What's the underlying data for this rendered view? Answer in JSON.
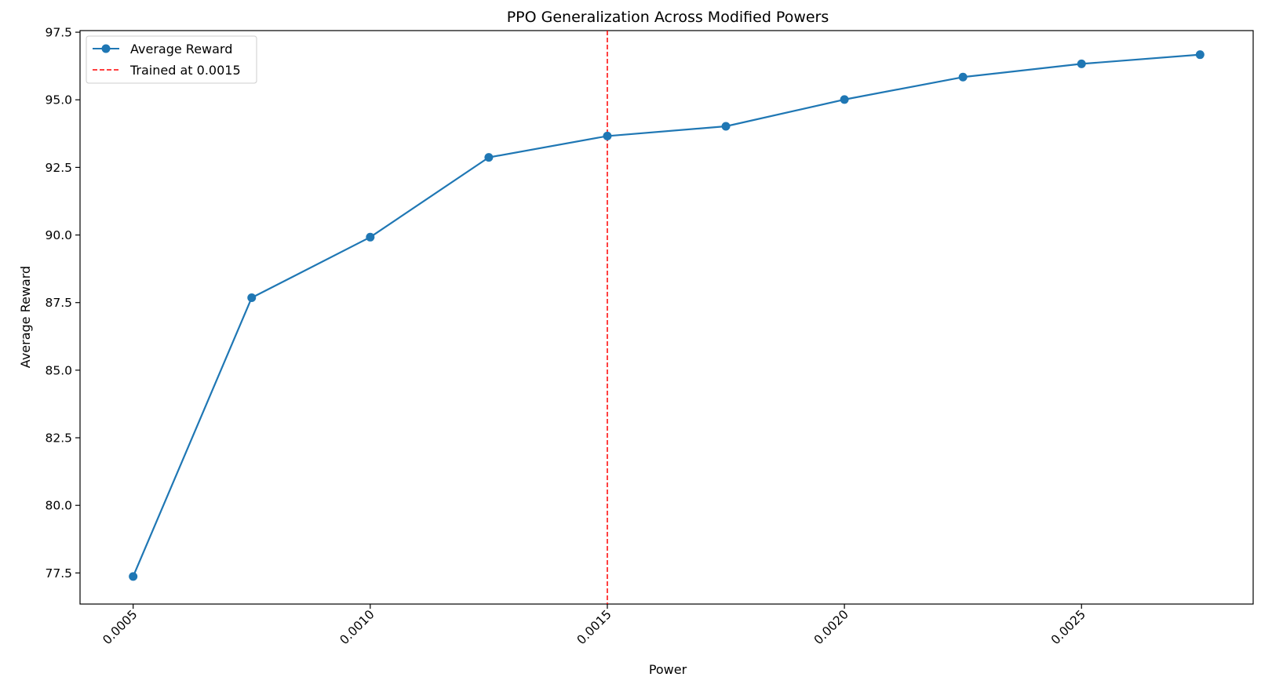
{
  "chart_data": {
    "type": "line",
    "title": "PPO Generalization Across Modified Powers",
    "xlabel": "Power",
    "ylabel": "Average Reward",
    "xlim": [
      0.000388,
      0.002862
    ],
    "ylim": [
      76.35,
      97.56
    ],
    "x_ticks": [
      {
        "value": 0.0005,
        "label": "0.0005"
      },
      {
        "value": 0.001,
        "label": "0.0010"
      },
      {
        "value": 0.0015,
        "label": "0.0015"
      },
      {
        "value": 0.002,
        "label": "0.0020"
      },
      {
        "value": 0.0025,
        "label": "0.0025"
      }
    ],
    "y_ticks": [
      {
        "value": 77.5,
        "label": "77.5"
      },
      {
        "value": 80.0,
        "label": "80.0"
      },
      {
        "value": 82.5,
        "label": "82.5"
      },
      {
        "value": 85.0,
        "label": "85.0"
      },
      {
        "value": 87.5,
        "label": "87.5"
      },
      {
        "value": 90.0,
        "label": "90.0"
      },
      {
        "value": 92.5,
        "label": "92.5"
      },
      {
        "value": 95.0,
        "label": "95.0"
      },
      {
        "value": 97.5,
        "label": "97.5"
      }
    ],
    "series": [
      {
        "name": "Average Reward",
        "color": "#1f77b4",
        "marker": "circle",
        "x": [
          0.0005,
          0.00075,
          0.001,
          0.00125,
          0.0015,
          0.00175,
          0.002,
          0.00225,
          0.0025,
          0.00275
        ],
        "y": [
          77.37,
          87.68,
          89.92,
          92.87,
          93.66,
          94.02,
          95.01,
          95.84,
          96.33,
          96.67
        ]
      }
    ],
    "reference_lines": [
      {
        "orientation": "vertical",
        "x": 0.0015,
        "name": "Trained at 0.0015",
        "color": "#ff0000",
        "style": "dashed"
      }
    ],
    "legend": {
      "position": "top-left",
      "entries": [
        {
          "label": "Average Reward",
          "color": "#1f77b4",
          "style": "line-marker"
        },
        {
          "label": "Trained at 0.0015",
          "color": "#ff0000",
          "style": "dashed"
        }
      ]
    },
    "grid": false
  }
}
